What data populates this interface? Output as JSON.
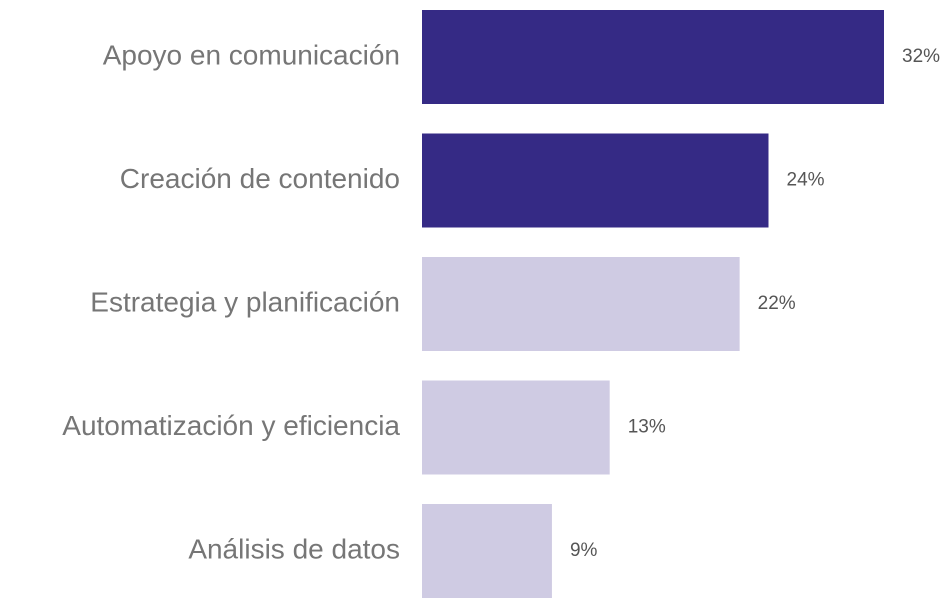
{
  "chart_data": {
    "type": "bar",
    "orientation": "horizontal",
    "categories": [
      "Apoyo en comunicación",
      "Creación de contenido",
      "Estrategia y planificación",
      "Automatización y eficiencia",
      "Análisis de datos"
    ],
    "values": [
      32,
      24,
      22,
      13,
      9
    ],
    "value_labels": [
      "32%",
      "24%",
      "22%",
      "13%",
      "9%"
    ],
    "colors": [
      "#352a85",
      "#352a85",
      "#cfcbe3",
      "#cfcbe3",
      "#cfcbe3"
    ]
  }
}
